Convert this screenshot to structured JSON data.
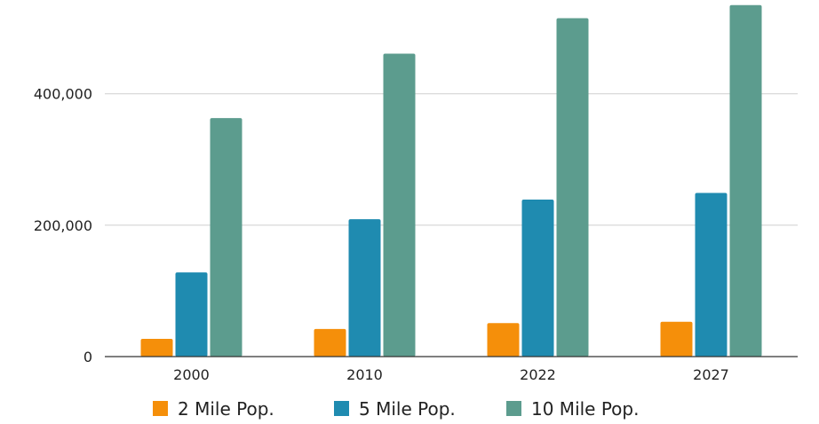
{
  "chart_data": {
    "type": "bar",
    "categories": [
      "2000",
      "2010",
      "2022",
      "2027"
    ],
    "series": [
      {
        "name": "2 Mile Pop.",
        "color": "#F58F0A",
        "values": [
          27000,
          42000,
          51000,
          53000
        ]
      },
      {
        "name": "5 Mile Pop.",
        "color": "#1F8BB0",
        "values": [
          128000,
          209000,
          239000,
          249000
        ]
      },
      {
        "name": "10 Mile Pop.",
        "color": "#5C9C8E",
        "values": [
          363000,
          461000,
          515000,
          535000
        ]
      }
    ],
    "y_ticks": [
      0,
      200000,
      400000
    ],
    "y_tick_labels": [
      "0",
      "200,000",
      "400,000"
    ],
    "ylim": [
      0,
      540000
    ],
    "grid": true,
    "legend_position": "bottom"
  }
}
